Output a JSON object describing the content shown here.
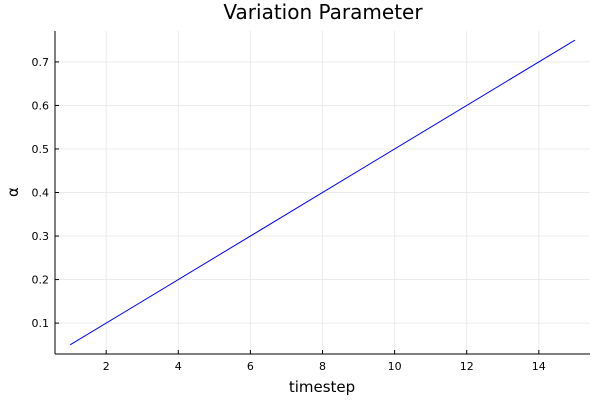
{
  "chart_data": {
    "type": "line",
    "title": "Variation Parameter",
    "xlabel": "timestep",
    "ylabel": "α",
    "xlim": [
      0.58,
      15.42
    ],
    "ylim": [
      0.029,
      0.771
    ],
    "xticks": [
      2,
      4,
      6,
      8,
      10,
      12,
      14
    ],
    "yticks": [
      0.1,
      0.2,
      0.3,
      0.4,
      0.5,
      0.6,
      0.7
    ],
    "grid": true,
    "legend": "none",
    "series": [
      {
        "color": "#0000ff",
        "x": [
          1,
          15
        ],
        "y": [
          0.05,
          0.75
        ]
      }
    ]
  }
}
